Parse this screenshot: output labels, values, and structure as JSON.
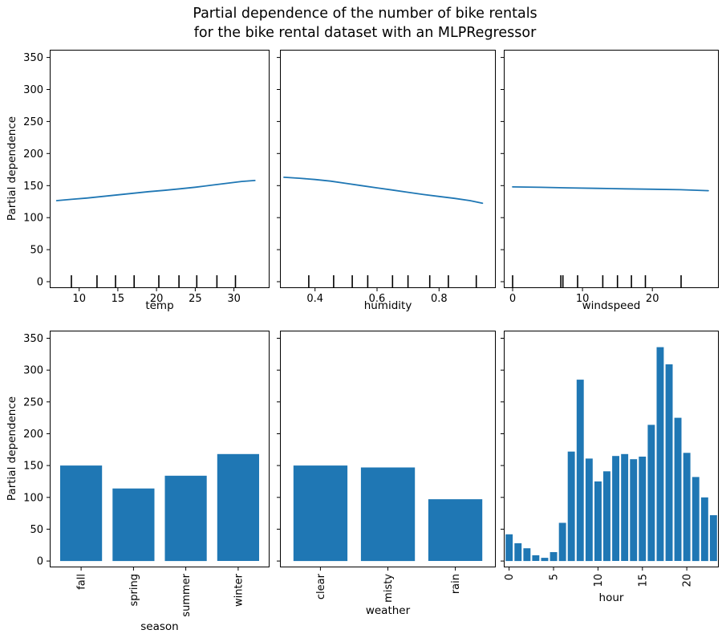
{
  "title": {
    "line1": "Partial dependence of the number of bike rentals",
    "line2": "for the bike rental dataset with an MLPRegressor"
  },
  "ylabel": "Partial dependence",
  "colors": {
    "line": "#1f77b4",
    "bar": "#1f77b4",
    "axis": "#000000",
    "text": "#000000",
    "background": "#ffffff"
  },
  "chart_data": [
    {
      "type": "line",
      "feature": "temp",
      "xlabel": "temp",
      "ylabel": "Partial dependence",
      "ylim": [
        0,
        350
      ],
      "yticks": [
        0,
        50,
        100,
        150,
        200,
        250,
        300,
        350
      ],
      "show_ytick_labels": true,
      "xlim": [
        6.2,
        34.6
      ],
      "xticks": [
        10,
        15,
        20,
        25,
        30
      ],
      "xtick_labels": [
        "10",
        "15",
        "20",
        "25",
        "30"
      ],
      "grid": false,
      "x": [
        7.1,
        9,
        11,
        13,
        15,
        17,
        19,
        21,
        23,
        25,
        27,
        29,
        31,
        32.7
      ],
      "y": [
        126.5,
        128.5,
        130.5,
        133,
        135.5,
        138,
        140.5,
        142.5,
        145,
        147.5,
        150.5,
        153.5,
        156.5,
        158
      ],
      "deciles": [
        9.0,
        12.3,
        14.7,
        17.1,
        20.3,
        22.9,
        25.2,
        27.8,
        30.2
      ]
    },
    {
      "type": "line",
      "feature": "humidity",
      "xlabel": "humidity",
      "ylim": [
        0,
        350
      ],
      "yticks": [
        0,
        50,
        100,
        150,
        200,
        250,
        300,
        350
      ],
      "show_ytick_labels": false,
      "xlim": [
        0.287,
        0.983
      ],
      "xticks": [
        0.4,
        0.6,
        0.8
      ],
      "xtick_labels": [
        "0.4",
        "0.6",
        "0.8"
      ],
      "grid": false,
      "x": [
        0.3,
        0.35,
        0.4,
        0.45,
        0.5,
        0.55,
        0.6,
        0.65,
        0.7,
        0.75,
        0.8,
        0.85,
        0.9,
        0.94
      ],
      "y": [
        163,
        161.5,
        159.5,
        157,
        153.5,
        150,
        146.5,
        143,
        139.5,
        136,
        133,
        130,
        126.5,
        122.5
      ],
      "deciles": [
        0.38,
        0.46,
        0.52,
        0.57,
        0.65,
        0.7,
        0.77,
        0.83,
        0.92
      ]
    },
    {
      "type": "line",
      "feature": "windspeed",
      "xlabel": "windspeed",
      "ylim": [
        0,
        350
      ],
      "yticks": [
        0,
        50,
        100,
        150,
        200,
        250,
        300,
        350
      ],
      "show_ytick_labels": false,
      "xlim": [
        -1.26,
        29.5
      ],
      "xticks": [
        0,
        10,
        20
      ],
      "xtick_labels": [
        "0",
        "10",
        "20"
      ],
      "grid": false,
      "x": [
        0,
        4,
        8,
        12,
        16,
        20,
        24,
        28
      ],
      "y": [
        148,
        147.3,
        146.5,
        145.7,
        145,
        144.3,
        143.5,
        142
      ],
      "deciles": [
        0,
        6.9,
        7.2,
        9.3,
        12.9,
        15.0,
        17.0,
        19.0,
        24.1
      ]
    },
    {
      "type": "bar",
      "feature": "season",
      "xlabel": "season",
      "ylim": [
        0,
        350
      ],
      "yticks": [
        0,
        50,
        100,
        150,
        200,
        250,
        300,
        350
      ],
      "show_ytick_labels": true,
      "grid": false,
      "categories": [
        "fall",
        "spring",
        "summer",
        "winter"
      ],
      "values": [
        150,
        114,
        134,
        168
      ]
    },
    {
      "type": "bar",
      "feature": "weather",
      "xlabel": "weather",
      "ylim": [
        0,
        350
      ],
      "yticks": [
        0,
        50,
        100,
        150,
        200,
        250,
        300,
        350
      ],
      "show_ytick_labels": false,
      "grid": false,
      "categories": [
        "clear",
        "misty",
        "rain"
      ],
      "values": [
        150,
        147,
        97
      ]
    },
    {
      "type": "bar",
      "feature": "hour",
      "xlabel": "hour",
      "ylim": [
        0,
        350
      ],
      "yticks": [
        0,
        50,
        100,
        150,
        200,
        250,
        300,
        350
      ],
      "show_ytick_labels": false,
      "grid": false,
      "categories": [
        "0",
        "1",
        "2",
        "3",
        "4",
        "5",
        "6",
        "7",
        "8",
        "9",
        "10",
        "11",
        "12",
        "13",
        "14",
        "15",
        "16",
        "17",
        "18",
        "19",
        "20",
        "21",
        "22",
        "23"
      ],
      "xtick_indices": [
        0,
        5,
        10,
        15,
        20
      ],
      "values": [
        42,
        28,
        20,
        9,
        5,
        14,
        60,
        172,
        285,
        161,
        125,
        141,
        165,
        168,
        160,
        164,
        214,
        336,
        309,
        225,
        170,
        132,
        100,
        72
      ]
    }
  ]
}
